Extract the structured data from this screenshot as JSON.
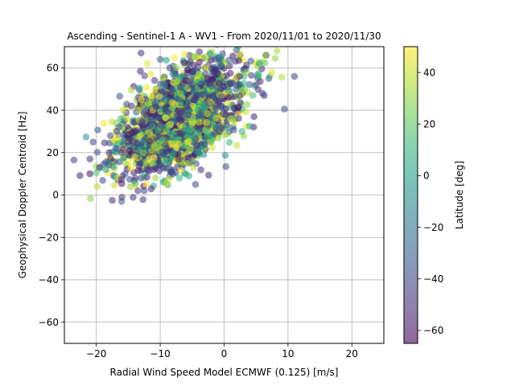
{
  "chart_data": {
    "type": "scatter",
    "title": "Ascending - Sentinel-1 A - WV1 - From 2020/11/01 to 2020/11/30",
    "xlabel": "Radial Wind Speed Model ECMWF (0.125) [m/s]",
    "ylabel": "Geophysical Doppler Centroid [Hz]",
    "xlim": [
      -25,
      25
    ],
    "ylim": [
      -70,
      70
    ],
    "xticks": [
      -20,
      -10,
      0,
      10,
      20
    ],
    "yticks": [
      -60,
      -40,
      -20,
      0,
      20,
      40,
      60
    ],
    "grid": true,
    "marker_alpha": 0.55,
    "colormap": "viridis",
    "colors": {
      "viridis": [
        "#440154",
        "#482878",
        "#3e4989",
        "#31688e",
        "#26828e",
        "#1f9e89",
        "#35b779",
        "#6ece58",
        "#b5de2b",
        "#fde725"
      ],
      "grid": "#b0b0b0"
    },
    "colorbar": {
      "label": "Latitude [deg]",
      "range": [
        -65,
        50
      ],
      "ticks": [
        -60,
        -40,
        -20,
        0,
        20,
        40
      ]
    },
    "points": [
      {
        "x": -23.5,
        "y": 16.5,
        "lat": -45
      },
      {
        "x": -21.0,
        "y": 17.0,
        "lat": -50
      },
      {
        "x": -20.5,
        "y": 25.0,
        "lat": -42
      },
      {
        "x": -19.5,
        "y": 13.0,
        "lat": -48
      },
      {
        "x": -18.5,
        "y": 15.5,
        "lat": -38
      },
      {
        "x": -18.0,
        "y": 20.0,
        "lat": -55
      },
      {
        "x": -17.5,
        "y": -2.5,
        "lat": -50
      },
      {
        "x": -17.8,
        "y": 28.0,
        "lat": -40
      },
      {
        "x": -17.0,
        "y": 22.0,
        "lat": -30
      },
      {
        "x": -16.0,
        "y": -1.0,
        "lat": -45
      },
      {
        "x": -16.5,
        "y": 32.0,
        "lat": -35
      },
      {
        "x": -16.2,
        "y": 36.0,
        "lat": 15
      },
      {
        "x": -15.5,
        "y": 10.0,
        "lat": -40
      },
      {
        "x": -15.8,
        "y": 40.0,
        "lat": 42
      },
      {
        "x": -15.0,
        "y": 25.0,
        "lat": -45
      },
      {
        "x": -14.5,
        "y": 42.0,
        "lat": -50
      },
      {
        "x": -14.0,
        "y": 18.0,
        "lat": 40
      },
      {
        "x": -13.5,
        "y": 2.0,
        "lat": -45
      },
      {
        "x": -13.0,
        "y": 8.0,
        "lat": -40
      },
      {
        "x": -12.5,
        "y": 2.0,
        "lat": -40
      },
      {
        "x": -13.0,
        "y": 67.0,
        "lat": -45
      },
      {
        "x": -12.0,
        "y": 62.0,
        "lat": 45
      },
      {
        "x": -11.5,
        "y": 57.0,
        "lat": 48
      },
      {
        "x": -11.0,
        "y": 12.0,
        "lat": -50
      },
      {
        "x": -10.0,
        "y": 64.0,
        "lat": -35
      },
      {
        "x": -9.5,
        "y": 6.0,
        "lat": 5
      },
      {
        "x": -9.0,
        "y": 5.5,
        "lat": 45
      },
      {
        "x": -8.0,
        "y": 10.0,
        "lat": -40
      },
      {
        "x": -7.5,
        "y": 60.0,
        "lat": 30
      },
      {
        "x": -7.0,
        "y": 8.0,
        "lat": 10
      },
      {
        "x": -6.0,
        "y": 10.0,
        "lat": 5
      },
      {
        "x": -5.5,
        "y": 9.0,
        "lat": 5
      },
      {
        "x": -4.8,
        "y": 13.0,
        "lat": 40
      },
      {
        "x": -5.0,
        "y": 16.0,
        "lat": -20
      },
      {
        "x": -4.0,
        "y": 20.0,
        "lat": 0
      },
      {
        "x": -3.0,
        "y": 24.0,
        "lat": -40
      },
      {
        "x": -2.5,
        "y": 30.0,
        "lat": 5
      },
      {
        "x": -2.0,
        "y": 25.0,
        "lat": 20
      },
      {
        "x": -1.5,
        "y": 29.0,
        "lat": -40
      },
      {
        "x": -1.0,
        "y": 32.0,
        "lat": -5
      },
      {
        "x": 0.5,
        "y": 32.0,
        "lat": 10
      },
      {
        "x": 1.0,
        "y": 36.0,
        "lat": 40
      },
      {
        "x": 2.0,
        "y": 23.5,
        "lat": 40
      },
      {
        "x": 2.5,
        "y": 47.0,
        "lat": -40
      },
      {
        "x": 2.8,
        "y": 30.0,
        "lat": 10
      },
      {
        "x": 3.5,
        "y": 58.0,
        "lat": 30
      },
      {
        "x": 4.0,
        "y": 32.5,
        "lat": 5
      },
      {
        "x": 4.5,
        "y": 47.0,
        "lat": 15
      },
      {
        "x": 5.0,
        "y": 52.0,
        "lat": -40
      },
      {
        "x": 5.5,
        "y": 62.0,
        "lat": 0
      },
      {
        "x": 6.0,
        "y": 48.0,
        "lat": -40
      },
      {
        "x": 6.5,
        "y": 66.0,
        "lat": 30
      },
      {
        "x": 7.5,
        "y": 58.0,
        "lat": 45
      },
      {
        "x": 8.0,
        "y": 64.5,
        "lat": 30
      },
      {
        "x": 8.3,
        "y": 68.0,
        "lat": 35
      },
      {
        "x": 7.0,
        "y": 55.0,
        "lat": -30
      }
    ],
    "point_cloud": {
      "count": 1900,
      "x_mean": -7.0,
      "x_spread": 4.8,
      "slope": 1.5,
      "intercept": 47.0,
      "y_spread": 11.0,
      "lat_groups": [
        {
          "lat": -45,
          "share": 0.52
        },
        {
          "lat": 5,
          "share": 0.22
        },
        {
          "lat": 40,
          "share": 0.26
        }
      ]
    }
  }
}
